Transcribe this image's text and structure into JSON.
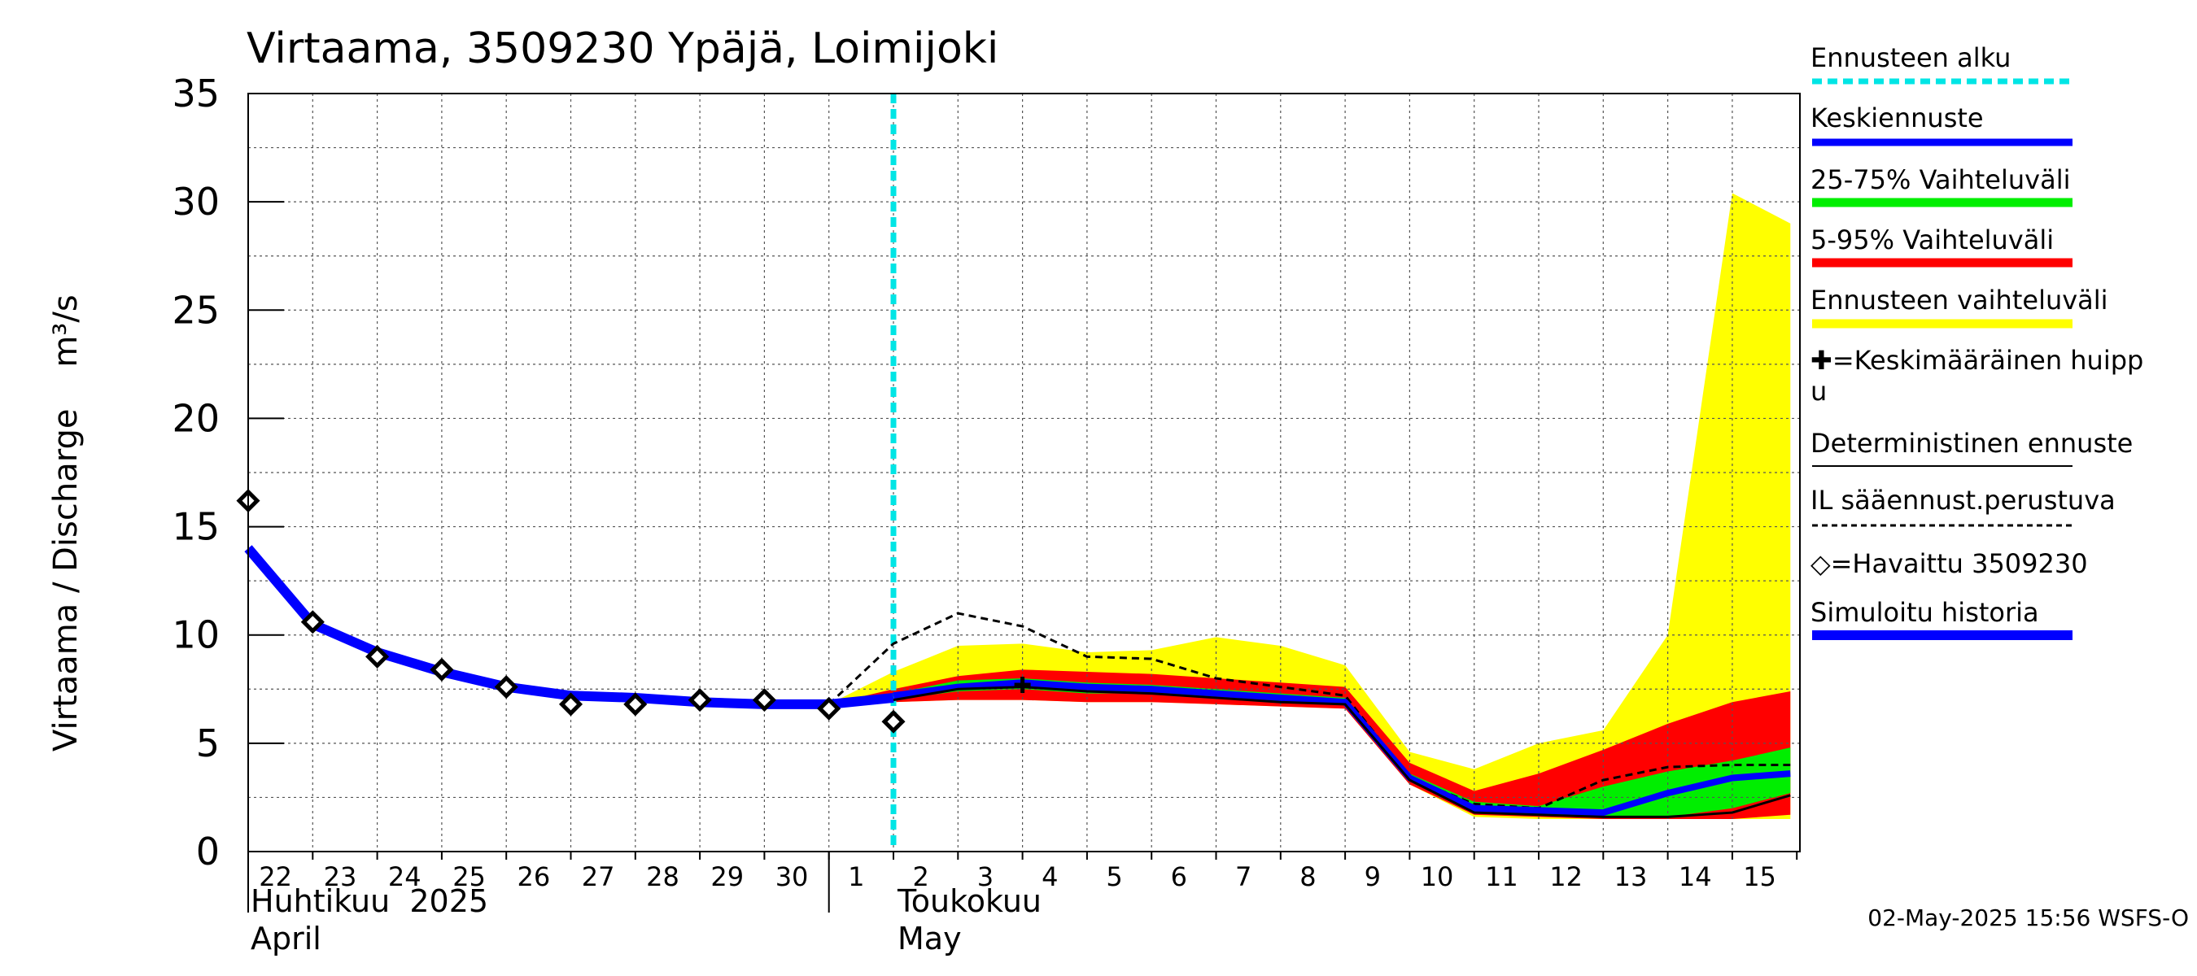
{
  "chart_data": {
    "type": "area",
    "title": "Virtaama, 3509230 Ypäjä, Loimijoki",
    "ylabel": "Virtaama / Discharge",
    "yunit": "m³/s",
    "ylim": [
      0,
      35
    ],
    "yticks": [
      0,
      5,
      10,
      15,
      20,
      25,
      30,
      35
    ],
    "x_start": "2025-04-22",
    "x_end": "2025-05-15",
    "x_ticklabels": [
      "22",
      "23",
      "24",
      "25",
      "26",
      "27",
      "28",
      "29",
      "30",
      "1",
      "2",
      "3",
      "4",
      "5",
      "6",
      "7",
      "8",
      "9",
      "10",
      "11",
      "12",
      "13",
      "14",
      "15"
    ],
    "month_labels": [
      {
        "fi": "Huhtikuu  2025",
        "en": "April",
        "at": "2025-04-22"
      },
      {
        "fi": "Toukokuu",
        "en": "May",
        "at": "2025-05-02"
      }
    ],
    "forecast_start": "2025-05-02",
    "grid": true,
    "legend_position": "right",
    "colors": {
      "forecast_start": "#00e5e5",
      "mean_forecast": "#0000ff",
      "band_25_75": "#00ee00",
      "band_5_95": "#ff0000",
      "band_full": "#ffff00",
      "deterministic": "#000000",
      "il_forecast": "#000000",
      "observed": "#000000",
      "simulated": "#0000ff"
    },
    "series": [
      {
        "name": "Simuloitu historia",
        "kind": "line",
        "x": [
          "2025-04-22",
          "2025-04-23",
          "2025-04-24",
          "2025-04-25",
          "2025-04-26",
          "2025-04-27",
          "2025-04-28",
          "2025-04-29",
          "2025-04-30",
          "2025-05-01",
          "2025-05-02"
        ],
        "y": [
          14.0,
          10.5,
          9.2,
          8.3,
          7.6,
          7.2,
          7.1,
          6.9,
          6.8,
          6.8,
          7.1
        ]
      },
      {
        "name": "Havaittu 3509230",
        "kind": "marker",
        "x": [
          "2025-04-22",
          "2025-04-23",
          "2025-04-24",
          "2025-04-25",
          "2025-04-26",
          "2025-04-27",
          "2025-04-28",
          "2025-04-29",
          "2025-04-30",
          "2025-05-01",
          "2025-05-02"
        ],
        "y": [
          16.2,
          10.6,
          9.0,
          8.4,
          7.6,
          6.8,
          6.8,
          7.0,
          7.0,
          6.6,
          6.0
        ]
      },
      {
        "name": "Ennusteen vaihteluväli",
        "kind": "band",
        "x": [
          "2025-05-01",
          "2025-05-02",
          "2025-05-03",
          "2025-05-04",
          "2025-05-05",
          "2025-05-06",
          "2025-05-07",
          "2025-05-08",
          "2025-05-09",
          "2025-05-10",
          "2025-05-11",
          "2025-05-12",
          "2025-05-13",
          "2025-05-14",
          "2025-05-15",
          "2025-05-15.9"
        ],
        "low": [
          6.8,
          6.9,
          7.0,
          7.0,
          6.9,
          6.9,
          6.8,
          6.7,
          6.6,
          3.1,
          1.6,
          1.5,
          1.5,
          1.5,
          1.5,
          1.5
        ],
        "high": [
          6.8,
          8.3,
          9.5,
          9.6,
          9.2,
          9.3,
          9.9,
          9.5,
          8.6,
          4.6,
          3.8,
          5.0,
          5.6,
          10.0,
          30.4,
          29.0
        ]
      },
      {
        "name": "5-95% Vaihteluväli",
        "kind": "band",
        "x": [
          "2025-05-01",
          "2025-05-02",
          "2025-05-03",
          "2025-05-04",
          "2025-05-05",
          "2025-05-06",
          "2025-05-07",
          "2025-05-08",
          "2025-05-09",
          "2025-05-10",
          "2025-05-11",
          "2025-05-12",
          "2025-05-13",
          "2025-05-14",
          "2025-05-15",
          "2025-05-15.9"
        ],
        "low": [
          6.8,
          6.9,
          7.0,
          7.0,
          6.9,
          6.9,
          6.8,
          6.7,
          6.6,
          3.1,
          1.7,
          1.6,
          1.5,
          1.5,
          1.5,
          1.7
        ],
        "high": [
          6.8,
          7.5,
          8.1,
          8.4,
          8.3,
          8.2,
          8.0,
          7.8,
          7.6,
          4.1,
          2.8,
          3.6,
          4.7,
          5.9,
          6.9,
          7.4
        ]
      },
      {
        "name": "25-75% Vaihteluväli",
        "kind": "band",
        "x": [
          "2025-05-01",
          "2025-05-02",
          "2025-05-03",
          "2025-05-04",
          "2025-05-05",
          "2025-05-06",
          "2025-05-07",
          "2025-05-08",
          "2025-05-09",
          "2025-05-10",
          "2025-05-11",
          "2025-05-12",
          "2025-05-13",
          "2025-05-14",
          "2025-05-15",
          "2025-05-15.9"
        ],
        "low": [
          6.8,
          7.0,
          7.4,
          7.5,
          7.3,
          7.3,
          7.1,
          6.9,
          6.8,
          3.3,
          1.9,
          1.7,
          1.6,
          1.6,
          2.0,
          2.7
        ],
        "high": [
          6.8,
          7.3,
          7.9,
          8.0,
          7.8,
          7.7,
          7.5,
          7.3,
          7.1,
          3.6,
          2.3,
          2.1,
          3.0,
          3.7,
          4.2,
          4.8
        ]
      },
      {
        "name": "Keskiennuste",
        "kind": "line",
        "x": [
          "2025-05-02",
          "2025-05-03",
          "2025-05-04",
          "2025-05-05",
          "2025-05-06",
          "2025-05-07",
          "2025-05-08",
          "2025-05-09",
          "2025-05-10",
          "2025-05-11",
          "2025-05-12",
          "2025-05-13",
          "2025-05-14",
          "2025-05-15",
          "2025-05-15.9"
        ],
        "y": [
          7.2,
          7.6,
          7.8,
          7.6,
          7.5,
          7.3,
          7.1,
          6.9,
          3.4,
          2.0,
          1.9,
          1.8,
          2.7,
          3.4,
          3.6
        ]
      },
      {
        "name": "Deterministinen ennuste",
        "kind": "line",
        "x": [
          "2025-05-02",
          "2025-05-03",
          "2025-05-04",
          "2025-05-05",
          "2025-05-06",
          "2025-05-07",
          "2025-05-08",
          "2025-05-09",
          "2025-05-10",
          "2025-05-11",
          "2025-05-12",
          "2025-05-13",
          "2025-05-14",
          "2025-05-15",
          "2025-05-15.9"
        ],
        "y": [
          7.0,
          7.5,
          7.6,
          7.4,
          7.3,
          7.1,
          6.9,
          6.8,
          3.3,
          1.8,
          1.7,
          1.6,
          1.6,
          1.8,
          2.6
        ]
      },
      {
        "name": "IL sääennust.perustuva",
        "kind": "dashed",
        "x": [
          "2025-05-01",
          "2025-05-02",
          "2025-05-03",
          "2025-05-04",
          "2025-05-05",
          "2025-05-06",
          "2025-05-07",
          "2025-05-08",
          "2025-05-09",
          "2025-05-10",
          "2025-05-11",
          "2025-05-12",
          "2025-05-13",
          "2025-05-14",
          "2025-05-15",
          "2025-05-15.9"
        ],
        "y": [
          6.8,
          9.6,
          11.0,
          10.4,
          9.0,
          8.9,
          8.0,
          7.6,
          7.2,
          3.4,
          2.2,
          2.0,
          3.3,
          3.9,
          4.0,
          4.0
        ]
      },
      {
        "name": "Keskimääräinen huippu",
        "kind": "plus",
        "x": [
          "2025-05-04"
        ],
        "y": [
          7.7
        ]
      }
    ]
  },
  "legend": {
    "items": [
      {
        "label": "Ennusteen alku",
        "style": "dotted-cyan"
      },
      {
        "label": "Keskiennuste",
        "style": "blue"
      },
      {
        "label": "25-75% Vaihteluväli",
        "style": "green"
      },
      {
        "label": "5-95% Vaihteluväli",
        "style": "red"
      },
      {
        "label": "Ennusteen vaihteluväli",
        "style": "yellow"
      },
      {
        "label": "✚=Keskimääräinen huipp\nu",
        "style": "none"
      },
      {
        "label": "Deterministinen ennuste",
        "style": "thin-black"
      },
      {
        "label": "IL sääennust.perustuva",
        "style": "dashed-black"
      },
      {
        "label": "◇=Havaittu 3509230",
        "style": "none"
      },
      {
        "label": "Simuloitu historia",
        "style": "thick-blue"
      }
    ]
  },
  "footer": "02-May-2025 15:56 WSFS-O"
}
